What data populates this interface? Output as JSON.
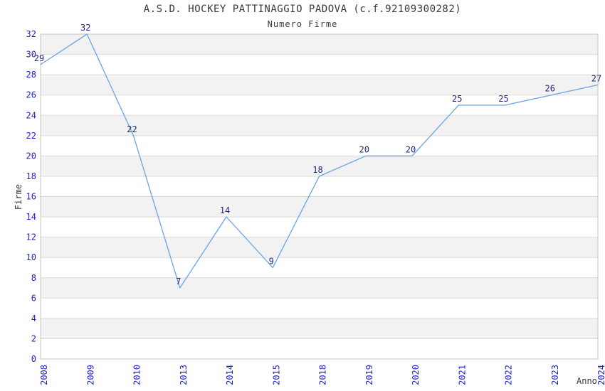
{
  "page": {
    "background": "#ffffff"
  },
  "chart_data": {
    "type": "line",
    "title": "A.S.D. HOCKEY PATTINAGGIO PADOVA (c.f.92109300282)",
    "subtitle": "Numero Firme",
    "xlabel": "Anno",
    "ylabel": "Firme",
    "categories": [
      "2008",
      "2009",
      "2010",
      "2013",
      "2014",
      "2015",
      "2018",
      "2019",
      "2020",
      "2021",
      "2022",
      "2023",
      "2024"
    ],
    "values": [
      29,
      32,
      22,
      7,
      14,
      9,
      18,
      20,
      20,
      25,
      25,
      26,
      27
    ],
    "ylim": [
      0,
      32
    ],
    "y_tick_step": 2,
    "grid": true,
    "banded_background": true,
    "legend": "none",
    "point_labels_visible": true,
    "colors": {
      "line": "#74A9E2",
      "band_fill": "#F2F2F2",
      "gridline": "#DBDBDB",
      "plot_border": "#C6C6C6",
      "tick_label": "#2222CC",
      "point_label": "#26267A",
      "text": "#3A3A3A"
    }
  }
}
